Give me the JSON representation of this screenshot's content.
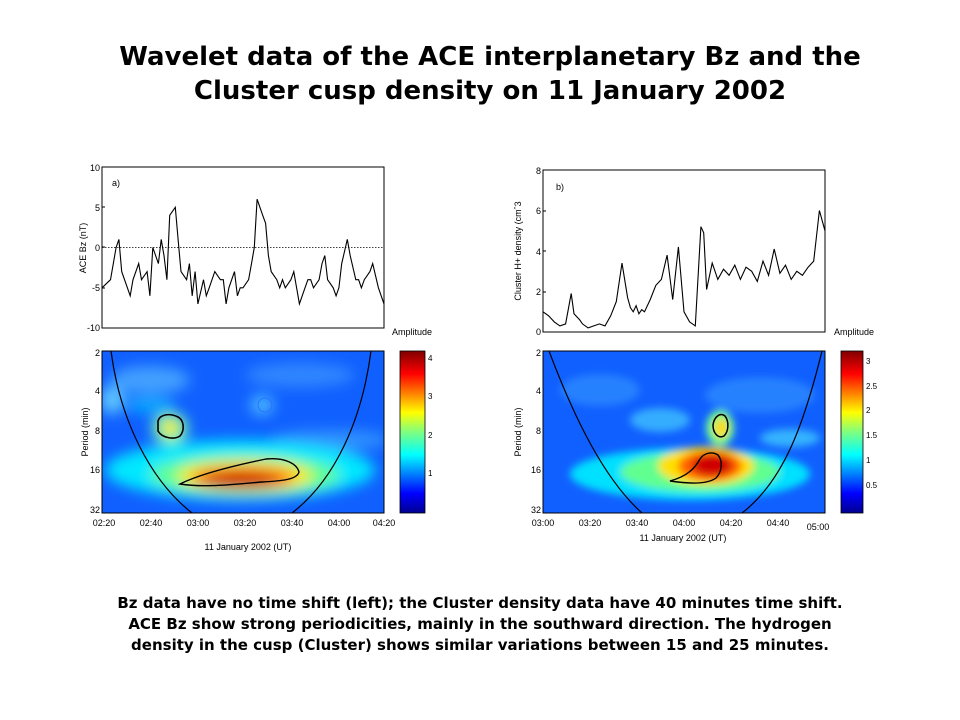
{
  "title": {
    "line1": "Wavelet data of the ACE interplanetary Bz and the",
    "line2": "Cluster cusp density on 11 January 2002"
  },
  "caption": {
    "line1": "Bz data have no time shift (left); the Cluster density data have 40 minutes time shift.",
    "line2": "ACE Bz show strong periodicities, mainly in the southward direction. The hydrogen",
    "line3": "density in the cusp (Cluster) shows similar variations between 15 and 25 minutes."
  },
  "chart_data": [
    {
      "id": "a",
      "type": "line",
      "panel_label": "a)",
      "ylabel": "ACE Bz (nT)",
      "ylim": [
        -10,
        10
      ],
      "yticks": [
        "10",
        "5",
        "0",
        "-5",
        "-10"
      ],
      "zero_line": true,
      "x": [
        0,
        0.03,
        0.05,
        0.06,
        0.07,
        0.09,
        0.1,
        0.11,
        0.13,
        0.14,
        0.16,
        0.17,
        0.18,
        0.2,
        0.21,
        0.22,
        0.23,
        0.24,
        0.26,
        0.27,
        0.28,
        0.3,
        0.31,
        0.32,
        0.33,
        0.34,
        0.36,
        0.37,
        0.38,
        0.4,
        0.42,
        0.43,
        0.44,
        0.45,
        0.47,
        0.48,
        0.49,
        0.5,
        0.52,
        0.53,
        0.54,
        0.55,
        0.57,
        0.58,
        0.59,
        0.6,
        0.62,
        0.63,
        0.64,
        0.65,
        0.67,
        0.68,
        0.69,
        0.7,
        0.72,
        0.73,
        0.74,
        0.75,
        0.77,
        0.78,
        0.79,
        0.8,
        0.82,
        0.83,
        0.84,
        0.85,
        0.87,
        0.88,
        0.9,
        0.91,
        0.92,
        0.93,
        0.95,
        0.96,
        0.98,
        1.0
      ],
      "values": [
        -5,
        -4,
        0,
        1,
        -3,
        -5,
        -6,
        -4,
        -2,
        -4,
        -3,
        -6,
        0,
        -2,
        1,
        -1,
        -4,
        4,
        5,
        1,
        -3,
        -4,
        -2,
        -6,
        -3,
        -7,
        -4,
        -6,
        -5,
        -3,
        -4,
        -4,
        -7,
        -5,
        -3,
        -6,
        -5,
        -5,
        -4,
        -2,
        0,
        6,
        4,
        3,
        -1,
        -3,
        -4,
        -5,
        -4,
        -5,
        -4,
        -3,
        -5,
        -7,
        -5,
        -4,
        -4,
        -5,
        -4,
        -2,
        -1,
        -4,
        -5,
        -6,
        -5,
        -2,
        1,
        -1,
        -4,
        -4,
        -5,
        -4,
        -3,
        -2,
        -5,
        -7
      ]
    },
    {
      "id": "b",
      "type": "line",
      "panel_label": "b)",
      "ylabel": "Cluster H+ density (cmˆ3",
      "ylim": [
        0,
        8
      ],
      "yticks": [
        "8",
        "6",
        "4",
        "2",
        "0"
      ],
      "x": [
        0,
        0.02,
        0.04,
        0.06,
        0.08,
        0.1,
        0.11,
        0.13,
        0.14,
        0.16,
        0.18,
        0.2,
        0.22,
        0.24,
        0.26,
        0.28,
        0.3,
        0.31,
        0.32,
        0.33,
        0.34,
        0.35,
        0.36,
        0.38,
        0.4,
        0.42,
        0.44,
        0.46,
        0.48,
        0.5,
        0.52,
        0.54,
        0.56,
        0.57,
        0.58,
        0.6,
        0.62,
        0.64,
        0.66,
        0.68,
        0.7,
        0.72,
        0.74,
        0.76,
        0.78,
        0.8,
        0.82,
        0.84,
        0.86,
        0.88,
        0.9,
        0.92,
        0.94,
        0.96,
        0.98,
        1.0
      ],
      "values": [
        1,
        0.8,
        0.5,
        0.3,
        0.4,
        1.9,
        0.9,
        0.6,
        0.4,
        0.2,
        0.3,
        0.4,
        0.3,
        0.8,
        1.5,
        3.4,
        1.7,
        1.2,
        1.0,
        1.3,
        0.9,
        1.1,
        1.0,
        1.6,
        2.3,
        2.6,
        3.8,
        1.6,
        4.2,
        1.0,
        0.5,
        0.3,
        5.2,
        4.9,
        2.1,
        3.4,
        2.6,
        3.1,
        2.8,
        3.3,
        2.6,
        3.2,
        3.0,
        2.5,
        3.5,
        2.8,
        4.1,
        2.9,
        3.3,
        2.6,
        3.0,
        2.8,
        3.2,
        3.5,
        6.0,
        5.0
      ]
    },
    {
      "id": "a-wavelet",
      "type": "heatmap",
      "ylabel": "Period (min)",
      "yticks": [
        "2",
        "4",
        "8",
        "16",
        "32"
      ],
      "xticks": [
        "02:20",
        "02:40",
        "03:00",
        "03:20",
        "03:40",
        "04:00",
        "04:20"
      ],
      "xlabel": "11 January 2002 (UT)",
      "colorbar_title": "Amplitude",
      "colorbar_range": [
        0,
        4.4
      ],
      "colorbar_ticks": [
        "4",
        "3",
        "2",
        "1"
      ],
      "peaks": [
        {
          "time": "03:25",
          "period_min": 20,
          "amplitude": 4.2
        },
        {
          "time": "02:55",
          "period_min": 8,
          "amplitude": 3.0
        }
      ]
    },
    {
      "id": "b-wavelet",
      "type": "heatmap",
      "ylabel": "Period (min)",
      "yticks": [
        "2",
        "4",
        "8",
        "16",
        "32"
      ],
      "xticks": [
        "03:00",
        "03:20",
        "03:40",
        "04:00",
        "04:20",
        "04:40",
        "05:00"
      ],
      "xlabel": "11 January 2002 (UT)",
      "colorbar_title": "Amplitude",
      "colorbar_range": [
        0,
        3.4
      ],
      "colorbar_ticks": [
        "3",
        "2.5",
        "2",
        "1.5",
        "1",
        "0.5"
      ],
      "peaks": [
        {
          "time": "04:10",
          "period_min": 16,
          "amplitude": 3.3
        },
        {
          "time": "04:12",
          "period_min": 8,
          "amplitude": 1.8
        }
      ]
    }
  ]
}
